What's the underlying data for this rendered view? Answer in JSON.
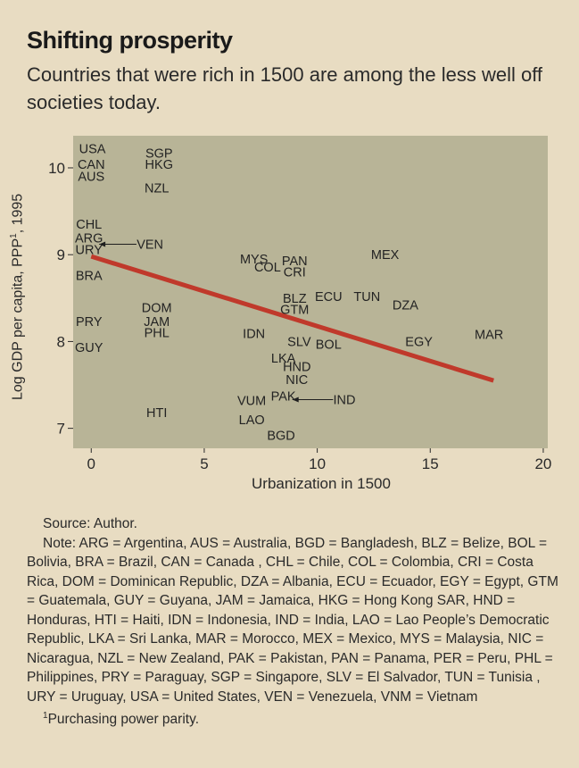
{
  "header": {
    "title": "Shifting prosperity",
    "subtitle": "Countries that were rich in 1500 are among the less well off societies today."
  },
  "footer": {
    "source": "Source: Author.",
    "note": "Note: ARG = Argentina, AUS = Australia, BGD = Bangladesh, BLZ = Belize, BOL = Bolivia, BRA = Brazil, CAN = Canada , CHL = Chile, COL = Colombia, CRI = Costa Rica, DOM = Dominican Republic, DZA = Albania, ECU = Ecuador, EGY = Egypt, GTM = Guatemala, GUY = Guyana, JAM = Jamaica, HKG = Hong Kong SAR, HND = Honduras, HTI = Haiti, IDN = Indonesia, IND = India, LAO = Lao People’s Democratic Republic, LKA = Sri Lanka, MAR = Morocco, MEX = Mexico, MYS = Malaysia, NIC = Nicaragua, NZL = New Zealand, PAK = Pakistan, PAN = Panama, PER = Peru, PHL = Philippines, PRY = Paraguay, SGP = Singapore, SLV = El Salvador, TUN = Tunisia , URY = Uruguay, USA = United States, VEN = Venezuela, VNM = Vietnam",
    "footnote_mark": "1",
    "footnote": "Purchasing power parity."
  },
  "colors": {
    "background": "#e8dcc2",
    "plot_area": "#b8b497",
    "trend_line": "#c0392b",
    "text": "#2a2a2a"
  },
  "chart_data": {
    "type": "scatter",
    "xlabel": "Urbanization in 1500",
    "ylabel_parts": {
      "before": "Log GDP per capita, PPP",
      "sup": "1",
      "after": ", 1995"
    },
    "xlim": [
      -0.8,
      20.2
    ],
    "ylim": [
      6.77,
      10.37
    ],
    "xticks": [
      0,
      5,
      10,
      15,
      20
    ],
    "yticks": [
      7,
      8,
      9,
      10
    ],
    "grid": false,
    "points": [
      {
        "label": "USA",
        "x": 0.05,
        "y": 10.22
      },
      {
        "label": "CAN",
        "x": 0.0,
        "y": 10.04
      },
      {
        "label": "AUS",
        "x": 0.0,
        "y": 9.9
      },
      {
        "label": "SGP",
        "x": 3.0,
        "y": 10.17
      },
      {
        "label": "HKG",
        "x": 3.0,
        "y": 10.04
      },
      {
        "label": "NZL",
        "x": 2.9,
        "y": 9.77
      },
      {
        "label": "CHL",
        "x": -0.1,
        "y": 9.35
      },
      {
        "label": "ARG",
        "x": -0.1,
        "y": 9.19
      },
      {
        "label": "URY",
        "x": -0.1,
        "y": 9.06
      },
      {
        "label": "VEN",
        "x": 2.6,
        "y": 9.12
      },
      {
        "label": "BRA",
        "x": -0.1,
        "y": 8.76
      },
      {
        "label": "MYS",
        "x": 7.2,
        "y": 8.95
      },
      {
        "label": "COL",
        "x": 7.8,
        "y": 8.86
      },
      {
        "label": "PAN",
        "x": 9.0,
        "y": 8.93
      },
      {
        "label": "CRI",
        "x": 9.0,
        "y": 8.8
      },
      {
        "label": "MEX",
        "x": 13.0,
        "y": 9.0
      },
      {
        "label": "BLZ",
        "x": 9.0,
        "y": 8.5
      },
      {
        "label": "GTM",
        "x": 9.0,
        "y": 8.37
      },
      {
        "label": "ECU",
        "x": 10.5,
        "y": 8.52
      },
      {
        "label": "TUN",
        "x": 12.2,
        "y": 8.52
      },
      {
        "label": "DZA",
        "x": 13.9,
        "y": 8.42
      },
      {
        "label": "DOM",
        "x": 2.9,
        "y": 8.39
      },
      {
        "label": "JAM",
        "x": 2.9,
        "y": 8.23
      },
      {
        "label": "PHL",
        "x": 2.9,
        "y": 8.1
      },
      {
        "label": "PRY",
        "x": -0.1,
        "y": 8.23
      },
      {
        "label": "GUY",
        "x": -0.1,
        "y": 7.93
      },
      {
        "label": "IDN",
        "x": 7.2,
        "y": 8.09
      },
      {
        "label": "SLV",
        "x": 9.2,
        "y": 8.0
      },
      {
        "label": "BOL",
        "x": 10.5,
        "y": 7.97
      },
      {
        "label": "EGY",
        "x": 14.5,
        "y": 8.0
      },
      {
        "label": "MAR",
        "x": 17.6,
        "y": 8.08
      },
      {
        "label": "LKA",
        "x": 8.5,
        "y": 7.81
      },
      {
        "label": "HND",
        "x": 9.1,
        "y": 7.71
      },
      {
        "label": "NIC",
        "x": 9.1,
        "y": 7.56
      },
      {
        "label": "PAK",
        "x": 8.5,
        "y": 7.37
      },
      {
        "label": "IND",
        "x": 11.2,
        "y": 7.33
      },
      {
        "label": "VUM",
        "x": 7.1,
        "y": 7.32
      },
      {
        "label": "LAO",
        "x": 7.1,
        "y": 7.1
      },
      {
        "label": "BGD",
        "x": 8.4,
        "y": 6.92
      },
      {
        "label": "HTI",
        "x": 2.9,
        "y": 7.18
      }
    ],
    "arrows": [
      {
        "from": [
          2.0,
          9.12
        ],
        "to": [
          0.35,
          9.12
        ]
      },
      {
        "from": [
          10.7,
          7.33
        ],
        "to": [
          8.9,
          7.33
        ]
      }
    ],
    "trend_line": {
      "x0": 0,
      "y0": 8.98,
      "x1": 17.8,
      "y1": 7.55
    }
  }
}
